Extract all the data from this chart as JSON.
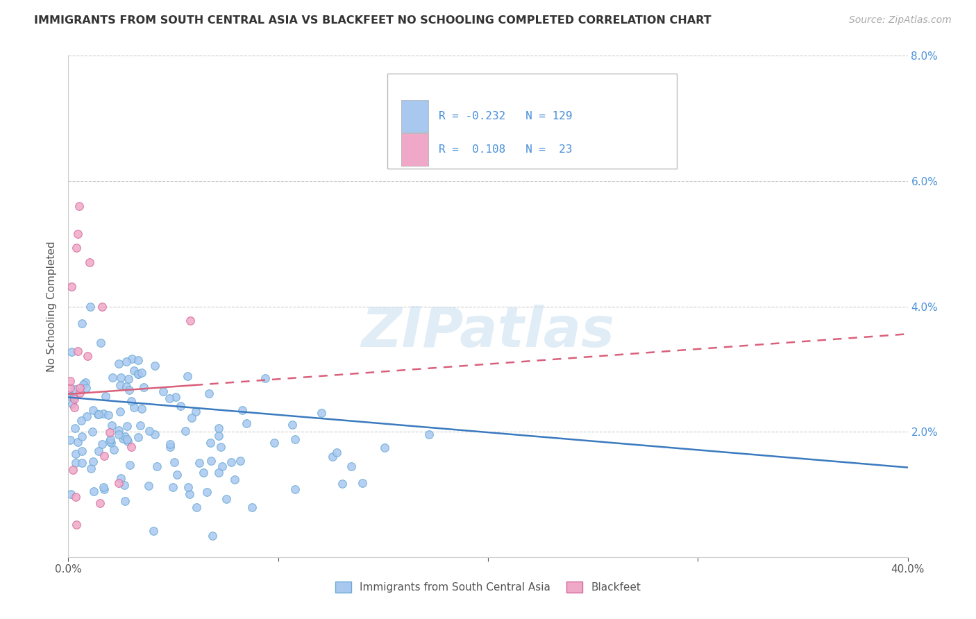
{
  "title": "IMMIGRANTS FROM SOUTH CENTRAL ASIA VS BLACKFEET NO SCHOOLING COMPLETED CORRELATION CHART",
  "source": "Source: ZipAtlas.com",
  "ylabel": "No Schooling Completed",
  "xlim": [
    0.0,
    0.4
  ],
  "ylim": [
    0.0,
    0.08
  ],
  "xticks": [
    0.0,
    0.1,
    0.2,
    0.3,
    0.4
  ],
  "xticklabels": [
    "0.0%",
    "",
    "",
    "",
    "40.0%"
  ],
  "yticks": [
    0.0,
    0.02,
    0.04,
    0.06,
    0.08
  ],
  "yticklabels_right": [
    "",
    "2.0%",
    "4.0%",
    "6.0%",
    "8.0%"
  ],
  "scatter1_color": "#a8c8f0",
  "scatter1_edge": "#6aaad4",
  "scatter2_color": "#f0a8c8",
  "scatter2_edge": "#d46a9a",
  "line1_color": "#3a7abf",
  "line2_color": "#d9607a",
  "line1_intercept": 0.0255,
  "line1_slope": -0.028,
  "line2_intercept": 0.026,
  "line2_slope": 0.024,
  "line2_solid_end": 0.06,
  "watermark": "ZIPatlas",
  "background_color": "#ffffff",
  "grid_color": "#cccccc",
  "title_color": "#333333",
  "source_color": "#aaaaaa",
  "tick_color": "#4a90d9",
  "label_color": "#555555"
}
